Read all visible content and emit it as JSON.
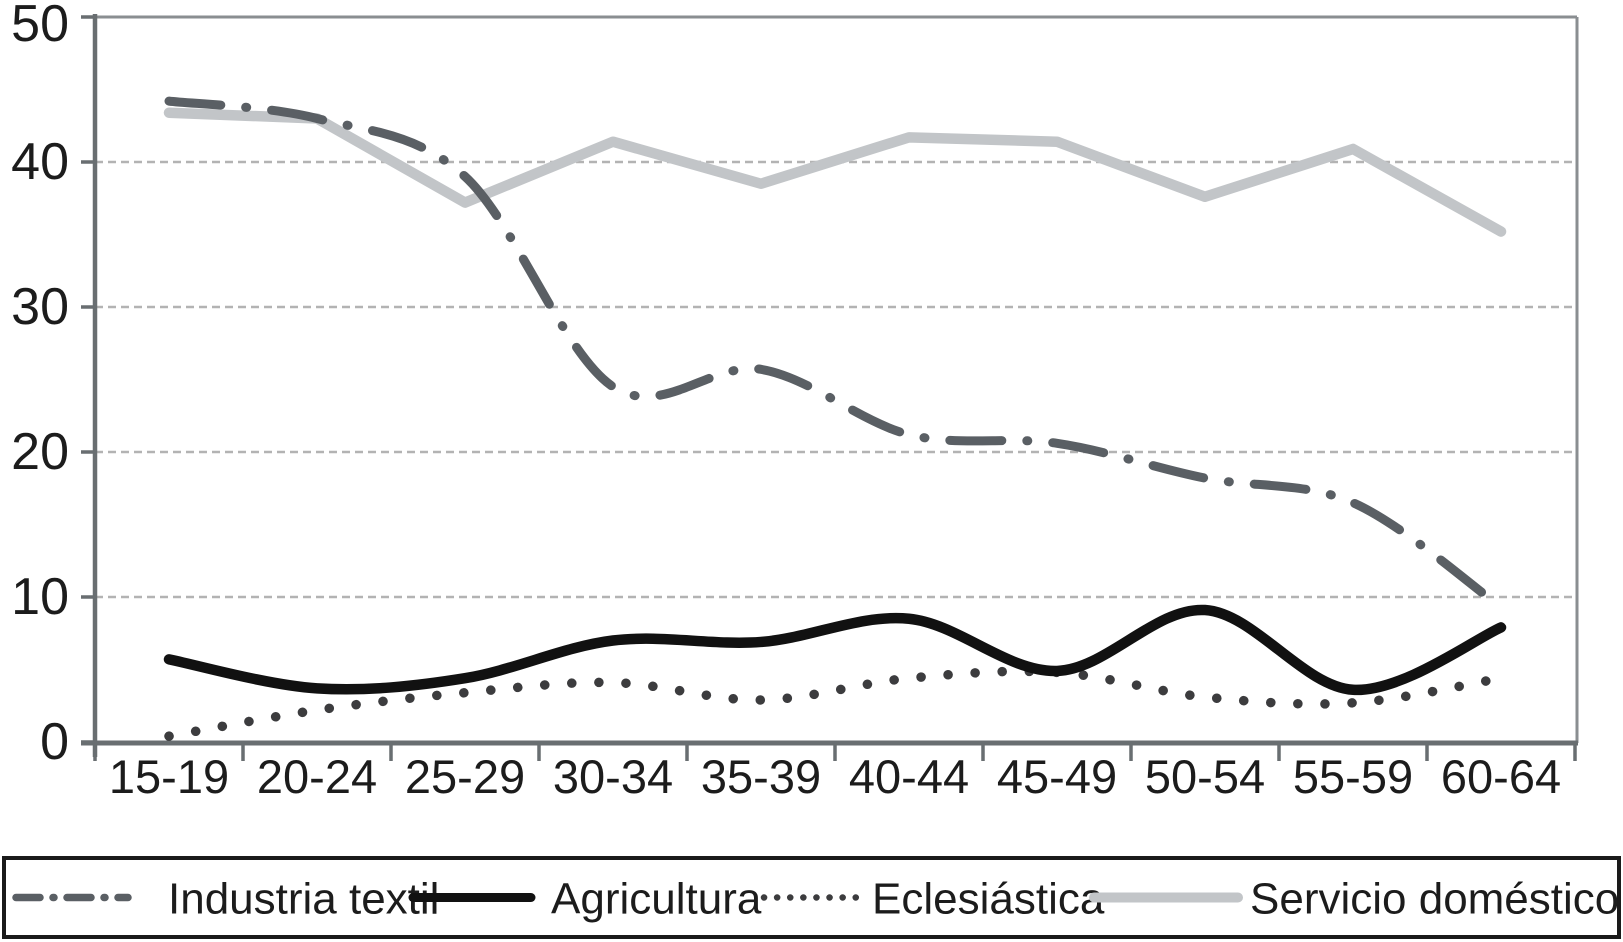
{
  "chart_data": {
    "type": "line",
    "title": "",
    "xlabel": "",
    "ylabel": "",
    "categories": [
      "15-19",
      "20-24",
      "25-29",
      "30-34",
      "35-39",
      "40-44",
      "45-49",
      "50-54",
      "55-59",
      "60-64"
    ],
    "series": [
      {
        "name": "Industria textil",
        "style": "dashdot",
        "smooth": true,
        "color": "#5a5f64",
        "values": [
          44.2,
          43.0,
          39.0,
          24.5,
          25.7,
          21.2,
          20.6,
          18.2,
          16.5,
          9.3
        ]
      },
      {
        "name": "Agricultura",
        "style": "solid",
        "smooth": true,
        "color": "#111111",
        "values": [
          5.7,
          3.7,
          4.4,
          7.0,
          6.9,
          8.5,
          4.9,
          9.1,
          3.6,
          7.9
        ]
      },
      {
        "name": "Eclesiástica",
        "style": "dotted",
        "smooth": true,
        "color": "#3c3c3e",
        "values": [
          0.4,
          2.2,
          3.4,
          4.1,
          2.9,
          4.4,
          4.8,
          3.1,
          2.7,
          4.4
        ]
      },
      {
        "name": "Servicio doméstico",
        "style": "solid",
        "smooth": false,
        "color": "#c2c5c8",
        "values": [
          43.4,
          43.0,
          37.2,
          41.4,
          38.5,
          41.7,
          41.4,
          37.6,
          40.9,
          35.2
        ]
      }
    ],
    "y_ticks": [
      0,
      10,
      20,
      30,
      40,
      50
    ],
    "y_tick_labels": [
      "0",
      "10",
      "20",
      "30",
      "40",
      "50"
    ],
    "ylim": [
      0,
      50
    ],
    "grid": "horizontal-dashed",
    "legend_position": "bottom"
  },
  "colors": {
    "background": "#ffffff",
    "gridline": "#b3b3b3",
    "axis": "#696e71",
    "plot_border": "#8a8e91",
    "text": "#1c1c1c",
    "legend_border": "#1a1a1a"
  }
}
